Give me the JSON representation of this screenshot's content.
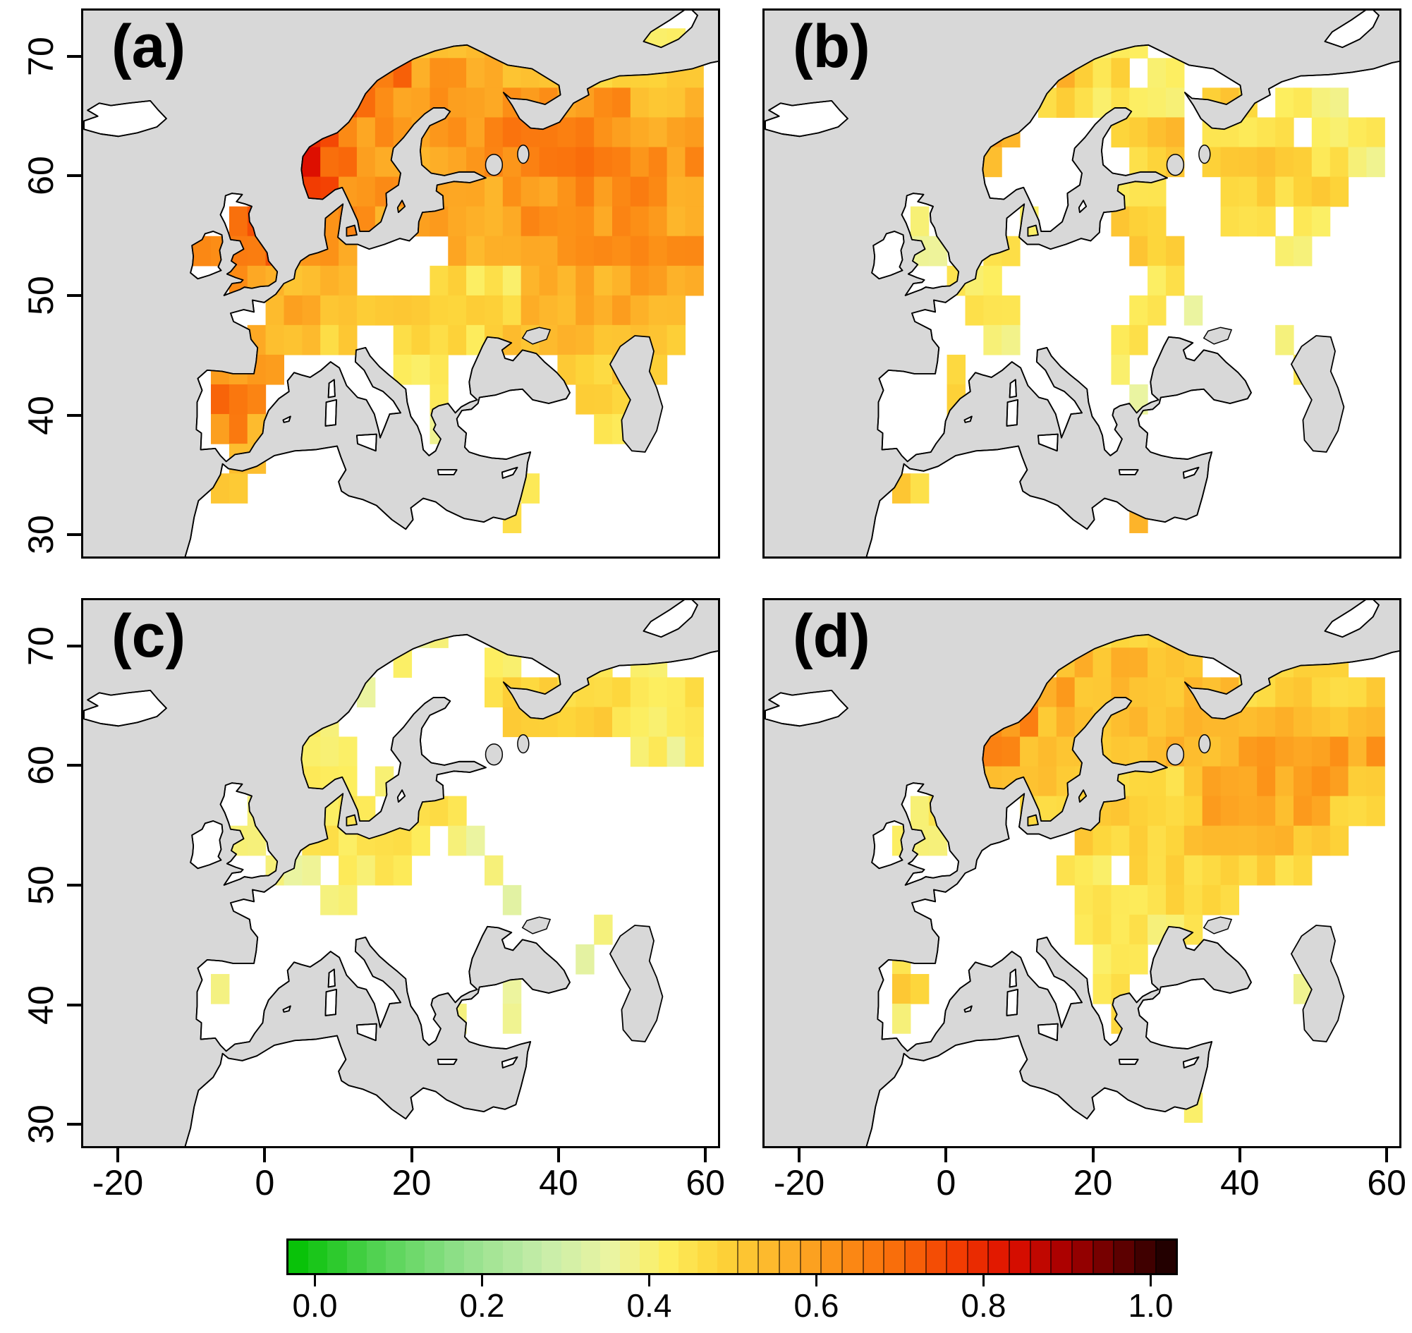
{
  "chart_data": {
    "type": "heatmap",
    "lon_range": [
      -25,
      62
    ],
    "lat_range": [
      28,
      74
    ],
    "cell_size_deg": 2.5,
    "sea_color": "#d8d8d8",
    "land_color": "#ffffff",
    "x_axis": {
      "tick_labels": [
        "-20",
        "0",
        "20",
        "40",
        "60"
      ],
      "tick_values": [
        -20,
        0,
        20,
        40,
        60
      ]
    },
    "y_axis": {
      "tick_labels": [
        "70",
        "60",
        "50",
        "40",
        "30"
      ],
      "tick_values": [
        70,
        60,
        50,
        40,
        30
      ]
    },
    "colorbar": {
      "tick_labels": [
        "0.0",
        "0.2",
        "0.4",
        "0.6",
        "0.8",
        "1.0"
      ],
      "tick_values": [
        0,
        0.2,
        0.4,
        0.6,
        0.8,
        1.0
      ],
      "min": 0,
      "max": 1,
      "stops": [
        [
          0.0,
          "#00c000"
        ],
        [
          0.1,
          "#50d250"
        ],
        [
          0.2,
          "#90e08a"
        ],
        [
          0.3,
          "#c8edaa"
        ],
        [
          0.38,
          "#ecf4a0"
        ],
        [
          0.44,
          "#fdee5f"
        ],
        [
          0.5,
          "#fdd53a"
        ],
        [
          0.57,
          "#fdb42a"
        ],
        [
          0.63,
          "#fc9117"
        ],
        [
          0.7,
          "#f96a0a"
        ],
        [
          0.76,
          "#f23d02"
        ],
        [
          0.82,
          "#dd0f00"
        ],
        [
          0.88,
          "#a80000"
        ],
        [
          0.94,
          "#600000"
        ],
        [
          1.0,
          "#150000"
        ]
      ]
    },
    "panels": [
      {
        "label": "(a)",
        "cells": [
          [
            70,
            15,
            32.5,
            0.55
          ],
          [
            70,
            32.5,
            42.5,
            0.5
          ],
          [
            70,
            50,
            57.5,
            0.45
          ],
          [
            67.5,
            12.5,
            20,
            0.68
          ],
          [
            67.5,
            20,
            32.5,
            0.6
          ],
          [
            67.5,
            32.5,
            45,
            0.56
          ],
          [
            67.5,
            45,
            60,
            0.5
          ],
          [
            65,
            10,
            15,
            0.72
          ],
          [
            65,
            15,
            35,
            0.62
          ],
          [
            65,
            35,
            50,
            0.62
          ],
          [
            65,
            50,
            60,
            0.55
          ],
          [
            62.5,
            5,
            10,
            0.78
          ],
          [
            62.5,
            10,
            30,
            0.62
          ],
          [
            62.5,
            30,
            45,
            0.66
          ],
          [
            62.5,
            45,
            60,
            0.6
          ],
          [
            60,
            5,
            7.5,
            0.84
          ],
          [
            60,
            7.5,
            12.5,
            0.72
          ],
          [
            60,
            12.5,
            25,
            0.6
          ],
          [
            60,
            25,
            35,
            0.62
          ],
          [
            60,
            35,
            50,
            0.67
          ],
          [
            60,
            50,
            60,
            0.62
          ],
          [
            57.5,
            5,
            10,
            0.76
          ],
          [
            57.5,
            10,
            25,
            0.62
          ],
          [
            57.5,
            25,
            40,
            0.6
          ],
          [
            57.5,
            40,
            55,
            0.64
          ],
          [
            57.5,
            55,
            60,
            0.58
          ],
          [
            55,
            -5,
            0,
            0.72
          ],
          [
            55,
            7.5,
            15,
            0.66
          ],
          [
            55,
            15,
            35,
            0.58
          ],
          [
            55,
            35,
            55,
            0.62
          ],
          [
            55,
            55,
            60,
            0.58
          ],
          [
            52.5,
            -10,
            -5,
            0.65
          ],
          [
            52.5,
            -5,
            2.5,
            0.7
          ],
          [
            52.5,
            2.5,
            12.5,
            0.6
          ],
          [
            52.5,
            25,
            40,
            0.58
          ],
          [
            52.5,
            40,
            60,
            0.62
          ],
          [
            50,
            -5,
            0,
            0.62
          ],
          [
            50,
            0,
            12.5,
            0.56
          ],
          [
            50,
            22.5,
            27.5,
            0.5
          ],
          [
            50,
            27.5,
            35,
            0.46
          ],
          [
            50,
            35,
            50,
            0.58
          ],
          [
            50,
            50,
            60,
            0.6
          ],
          [
            47.5,
            0,
            7.5,
            0.58
          ],
          [
            47.5,
            7.5,
            20,
            0.52
          ],
          [
            47.5,
            20,
            35,
            0.5
          ],
          [
            47.5,
            35,
            50,
            0.58
          ],
          [
            47.5,
            50,
            57.5,
            0.55
          ],
          [
            45,
            -2.5,
            7.5,
            0.56
          ],
          [
            45,
            7.5,
            12.5,
            0.5
          ],
          [
            45,
            17.5,
            30,
            0.48
          ],
          [
            45,
            30,
            45,
            0.54
          ],
          [
            45,
            45,
            57.5,
            0.52
          ],
          [
            42.5,
            -7.5,
            2.5,
            0.6
          ],
          [
            42.5,
            17.5,
            25,
            0.45
          ],
          [
            42.5,
            40,
            55,
            0.52
          ],
          [
            40,
            -7.5,
            0,
            0.68
          ],
          [
            40,
            22.5,
            25,
            0.42
          ],
          [
            40,
            42.5,
            50,
            0.5
          ],
          [
            37.5,
            -7.5,
            -2.5,
            0.64
          ],
          [
            37.5,
            -2.5,
            0,
            0.55
          ],
          [
            37.5,
            22.5,
            25,
            0.4
          ],
          [
            37.5,
            45,
            50,
            0.48
          ],
          [
            35,
            -5,
            0,
            0.55
          ],
          [
            32.5,
            -7.5,
            -2.5,
            0.55
          ],
          [
            32.5,
            35,
            37.5,
            0.45
          ],
          [
            30,
            32.5,
            35,
            0.45
          ]
        ]
      },
      {
        "label": "(b)",
        "cells": [
          [
            70,
            20,
            27.5,
            0.45
          ],
          [
            70,
            42.5,
            45,
            0.4
          ],
          [
            67.5,
            15,
            17.5,
            0.6
          ],
          [
            67.5,
            17.5,
            25,
            0.48
          ],
          [
            67.5,
            27.5,
            32.5,
            0.45
          ],
          [
            65,
            12.5,
            20,
            0.5
          ],
          [
            65,
            20,
            32.5,
            0.45
          ],
          [
            65,
            35,
            42.5,
            0.52
          ],
          [
            65,
            45,
            55,
            0.42
          ],
          [
            62.5,
            5,
            10,
            0.6
          ],
          [
            62.5,
            22.5,
            27.5,
            0.5
          ],
          [
            62.5,
            27.5,
            32.5,
            0.57
          ],
          [
            62.5,
            35,
            47.5,
            0.45
          ],
          [
            62.5,
            50,
            60,
            0.45
          ],
          [
            60,
            5,
            7.5,
            0.57
          ],
          [
            60,
            25,
            32.5,
            0.5
          ],
          [
            60,
            35,
            50,
            0.52
          ],
          [
            60,
            50,
            57.5,
            0.45
          ],
          [
            60,
            57.5,
            60,
            0.36
          ],
          [
            57.5,
            22.5,
            30,
            0.47
          ],
          [
            57.5,
            37.5,
            55,
            0.5
          ],
          [
            55,
            -5,
            -2.5,
            0.45
          ],
          [
            55,
            10,
            12.5,
            0.44
          ],
          [
            55,
            22.5,
            30,
            0.5
          ],
          [
            55,
            37.5,
            45,
            0.46
          ],
          [
            55,
            47.5,
            52.5,
            0.42
          ],
          [
            52.5,
            -5,
            0,
            0.42
          ],
          [
            52.5,
            5,
            10,
            0.45
          ],
          [
            52.5,
            25,
            32.5,
            0.52
          ],
          [
            52.5,
            45,
            50,
            0.4
          ],
          [
            50,
            0,
            7.5,
            0.45
          ],
          [
            50,
            27.5,
            32.5,
            0.46
          ],
          [
            47.5,
            2.5,
            10,
            0.45
          ],
          [
            47.5,
            25,
            30,
            0.45
          ],
          [
            47.5,
            32.5,
            35,
            0.4
          ],
          [
            45,
            5,
            10,
            0.42
          ],
          [
            45,
            22.5,
            27.5,
            0.45
          ],
          [
            45,
            45,
            47.5,
            0.4
          ],
          [
            42.5,
            0,
            2.5,
            0.48
          ],
          [
            42.5,
            22.5,
            25,
            0.42
          ],
          [
            42.5,
            47.5,
            50,
            0.44
          ],
          [
            40,
            0,
            2.5,
            0.5
          ],
          [
            40,
            25,
            27.5,
            0.4
          ],
          [
            37.5,
            0,
            2.5,
            0.5
          ],
          [
            32.5,
            -7.5,
            -5,
            0.55
          ],
          [
            32.5,
            -5,
            -2.5,
            0.5
          ],
          [
            30,
            25,
            27.5,
            0.55
          ]
        ]
      },
      {
        "label": "(c)",
        "cells": [
          [
            70,
            20,
            25,
            0.42
          ],
          [
            70,
            35,
            37.5,
            0.4
          ],
          [
            67.5,
            17.5,
            20,
            0.4
          ],
          [
            67.5,
            30,
            35,
            0.45
          ],
          [
            67.5,
            40,
            47.5,
            0.47
          ],
          [
            67.5,
            50,
            55,
            0.42
          ],
          [
            65,
            12.5,
            15,
            0.4
          ],
          [
            65,
            30,
            45,
            0.5
          ],
          [
            65,
            45,
            60,
            0.46
          ],
          [
            62.5,
            5,
            10,
            0.45
          ],
          [
            62.5,
            32.5,
            47.5,
            0.5
          ],
          [
            62.5,
            47.5,
            60,
            0.45
          ],
          [
            60,
            5,
            12.5,
            0.45
          ],
          [
            60,
            50,
            60,
            0.42
          ],
          [
            57.5,
            5,
            12.5,
            0.45
          ],
          [
            57.5,
            15,
            17.5,
            0.4
          ],
          [
            55,
            -2.5,
            0,
            0.4
          ],
          [
            55,
            7.5,
            15,
            0.47
          ],
          [
            55,
            20,
            27.5,
            0.45
          ],
          [
            52.5,
            -5,
            0,
            0.45
          ],
          [
            52.5,
            5,
            22.5,
            0.45
          ],
          [
            52.5,
            25,
            30,
            0.4
          ],
          [
            50,
            0,
            7.5,
            0.4
          ],
          [
            50,
            10,
            20,
            0.45
          ],
          [
            50,
            30,
            32.5,
            0.4
          ],
          [
            47.5,
            7.5,
            12.5,
            0.4
          ],
          [
            47.5,
            32.5,
            35,
            0.38
          ],
          [
            45,
            45,
            47.5,
            0.4
          ],
          [
            42.5,
            42.5,
            45,
            0.38
          ],
          [
            40,
            -7.5,
            -5,
            0.38
          ],
          [
            40,
            32.5,
            35,
            0.38
          ],
          [
            37.5,
            25,
            27.5,
            0.38
          ],
          [
            37.5,
            32.5,
            35,
            0.4
          ]
        ]
      },
      {
        "label": "(d)",
        "cells": [
          [
            70,
            17.5,
            32.5,
            0.5
          ],
          [
            70,
            42.5,
            50,
            0.45
          ],
          [
            67.5,
            15,
            35,
            0.55
          ],
          [
            67.5,
            40,
            55,
            0.5
          ],
          [
            65,
            10,
            17.5,
            0.6
          ],
          [
            65,
            17.5,
            40,
            0.55
          ],
          [
            65,
            40,
            60,
            0.5
          ],
          [
            62.5,
            5,
            12.5,
            0.64
          ],
          [
            62.5,
            12.5,
            40,
            0.55
          ],
          [
            62.5,
            40,
            60,
            0.55
          ],
          [
            60,
            5,
            10,
            0.68
          ],
          [
            60,
            10,
            25,
            0.55
          ],
          [
            60,
            25,
            40,
            0.55
          ],
          [
            60,
            40,
            60,
            0.6
          ],
          [
            57.5,
            5,
            15,
            0.55
          ],
          [
            57.5,
            15,
            35,
            0.5
          ],
          [
            57.5,
            35,
            55,
            0.6
          ],
          [
            57.5,
            55,
            60,
            0.52
          ],
          [
            55,
            -5,
            0,
            0.45
          ],
          [
            55,
            10,
            35,
            0.5
          ],
          [
            55,
            35,
            52.5,
            0.58
          ],
          [
            55,
            52.5,
            60,
            0.5
          ],
          [
            52.5,
            -7.5,
            0,
            0.45
          ],
          [
            52.5,
            17.5,
            32.5,
            0.5
          ],
          [
            52.5,
            32.5,
            47.5,
            0.55
          ],
          [
            52.5,
            47.5,
            55,
            0.5
          ],
          [
            50,
            15,
            22.5,
            0.45
          ],
          [
            50,
            25,
            40,
            0.5
          ],
          [
            50,
            40,
            50,
            0.5
          ],
          [
            47.5,
            17.5,
            30,
            0.45
          ],
          [
            47.5,
            30,
            40,
            0.5
          ],
          [
            45,
            17.5,
            27.5,
            0.45
          ],
          [
            45,
            27.5,
            35,
            0.45
          ],
          [
            42.5,
            -7.5,
            -5,
            0.45
          ],
          [
            42.5,
            20,
            27.5,
            0.45
          ],
          [
            40,
            -7.5,
            -2.5,
            0.5
          ],
          [
            40,
            20,
            25,
            0.45
          ],
          [
            40,
            47.5,
            50,
            0.4
          ],
          [
            37.5,
            -7.5,
            -5,
            0.45
          ],
          [
            37.5,
            22.5,
            25,
            0.5
          ],
          [
            30,
            32.5,
            35,
            0.4
          ]
        ]
      }
    ]
  }
}
